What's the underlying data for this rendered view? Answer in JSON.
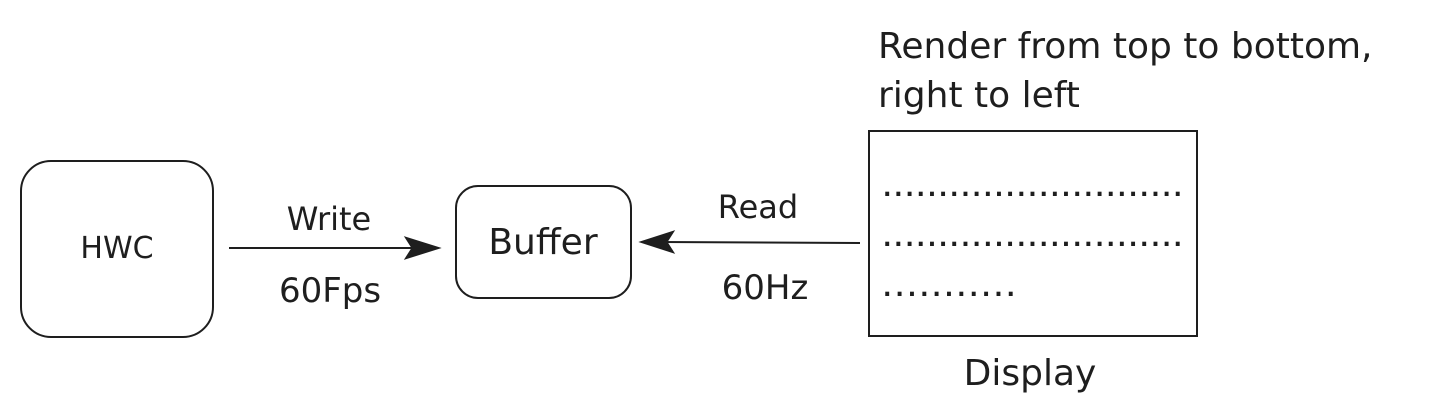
{
  "nodes": {
    "hwc": {
      "label": "HWC"
    },
    "buffer": {
      "label": "Buffer"
    },
    "display": {
      "label": "Display",
      "lines": [
        "...........................",
        "...........................",
        "..........."
      ]
    }
  },
  "edges": {
    "write": {
      "label": "Write",
      "rate": "60Fps"
    },
    "read": {
      "label": "Read",
      "rate": "60Hz"
    }
  },
  "note": {
    "line1": "Render from top to bottom,",
    "line2": "right to left"
  },
  "colors": {
    "stroke": "#1e1e1e",
    "background": "#ffffff"
  }
}
